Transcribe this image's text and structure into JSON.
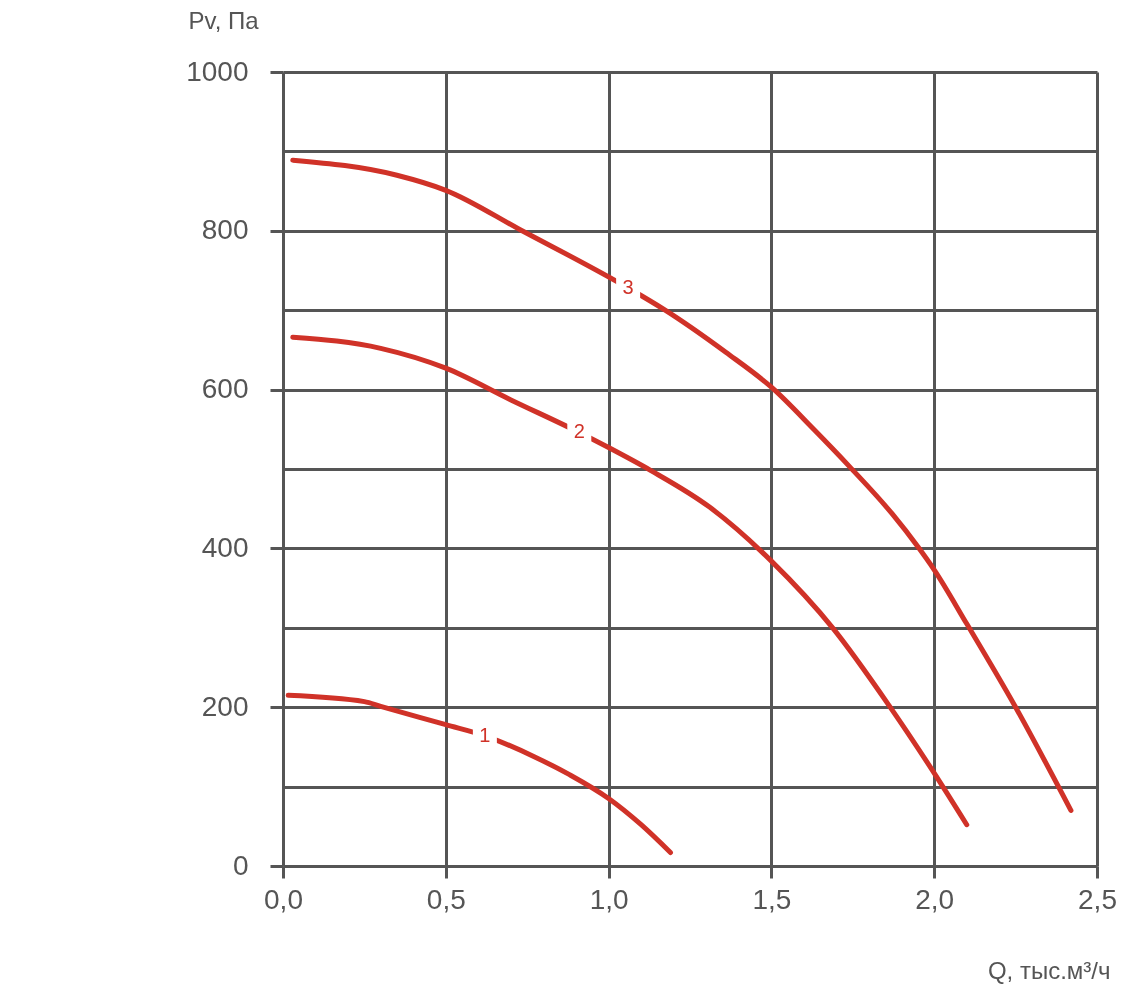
{
  "chart_data": {
    "type": "line",
    "xlabel": "Q, тыс.м³/ч",
    "ylabel": "Pv, Па",
    "xlim": [
      0,
      2.5
    ],
    "ylim": [
      0,
      1000
    ],
    "xticks": [
      {
        "value": 0,
        "label": "0,0"
      },
      {
        "value": 0.5,
        "label": "0,5"
      },
      {
        "value": 1,
        "label": "1,0"
      },
      {
        "value": 1.5,
        "label": "1,5"
      },
      {
        "value": 2,
        "label": "2,0"
      },
      {
        "value": 2.5,
        "label": "2,5"
      }
    ],
    "yticks": [
      0,
      {
        "value": 100,
        "label": null
      },
      200,
      {
        "value": 300,
        "label": null
      },
      400,
      {
        "value": 500,
        "label": null
      },
      600,
      {
        "value": 700,
        "label": null
      },
      800,
      {
        "value": 900,
        "label": null
      },
      1000
    ],
    "grid": true,
    "series": [
      {
        "name": "1",
        "color": "#d03228",
        "x": [
          0.016,
          0.25,
          0.3,
          0.5,
          0.62,
          0.77,
          0.88,
          1.0,
          1.1,
          1.19
        ],
        "values": [
          215,
          207,
          201,
          178,
          164,
          138,
          115,
          85,
          52,
          17
        ]
      },
      {
        "name": "2",
        "color": "#d03228",
        "x": [
          0.03,
          0.3,
          0.5,
          0.7,
          0.91,
          1.0,
          1.13,
          1.31,
          1.5,
          1.69,
          1.86,
          2.0,
          2.1
        ],
        "values": [
          666,
          652,
          627,
          587,
          546,
          527,
          498,
          452,
          384,
          299,
          203,
          117,
          52
        ]
      },
      {
        "name": "3",
        "color": "#d03228",
        "x": [
          0.03,
          0.35,
          0.5,
          0.73,
          1.06,
          1.17,
          1.36,
          1.5,
          1.63,
          1.74,
          1.87,
          1.95,
          2.0,
          2.1,
          2.25,
          2.42
        ],
        "values": [
          889,
          870,
          851,
          801,
          728,
          701,
          647,
          603,
          550,
          503,
          444,
          402,
          373,
          305,
          200,
          70
        ]
      }
    ]
  }
}
